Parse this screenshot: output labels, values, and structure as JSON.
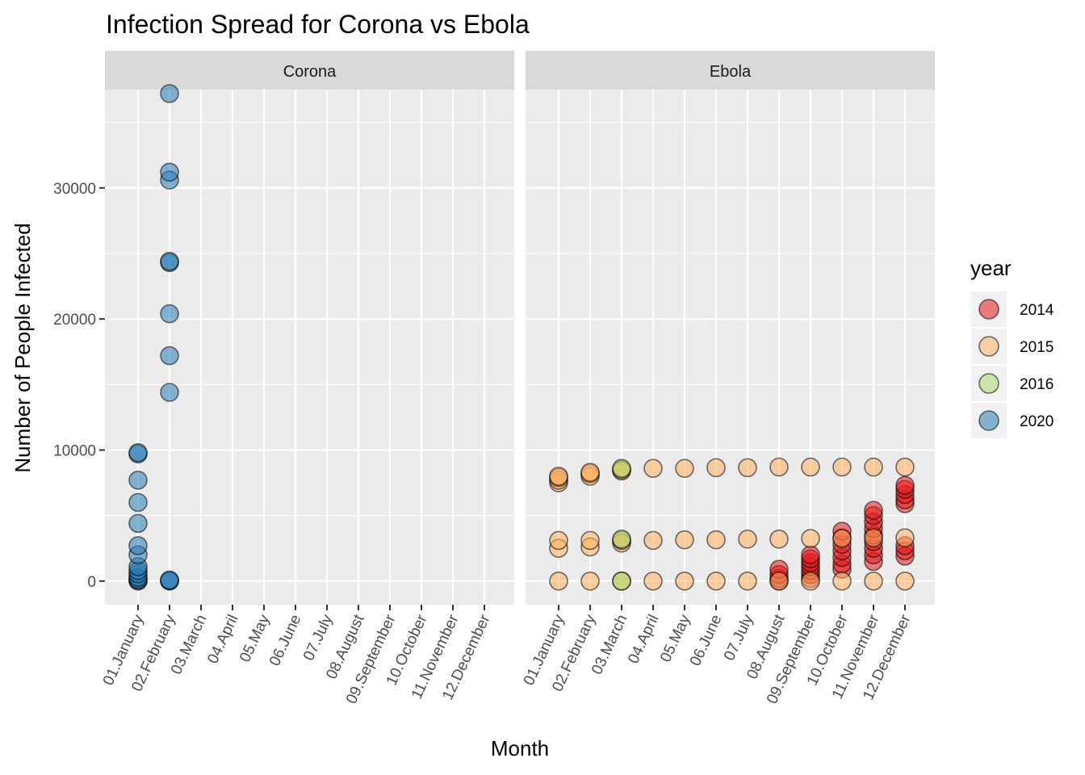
{
  "chart_data": {
    "type": "scatter",
    "title": "Infection Spread for Corona vs Ebola",
    "xlabel": "Month",
    "ylabel": "Number of People Infected",
    "ylim": [
      -1800,
      37500
    ],
    "y_ticks": [
      0,
      10000,
      20000,
      30000
    ],
    "y_tick_labels": [
      "0",
      "10000",
      "20000",
      "30000"
    ],
    "categories": [
      "01.January",
      "02.February",
      "03.March",
      "04.April",
      "05.May",
      "06.June",
      "07.July",
      "08.August",
      "09.September",
      "10.October",
      "11.November",
      "12.December"
    ],
    "grid": true,
    "point_alpha": 0.55,
    "panels": [
      {
        "name": "Corona",
        "series": [
          {
            "name": "2020",
            "points": [
              [
                "01.January",
                0
              ],
              [
                "01.January",
                50
              ],
              [
                "01.January",
                150
              ],
              [
                "01.January",
                300
              ],
              [
                "01.January",
                550
              ],
              [
                "01.January",
                800
              ],
              [
                "01.January",
                1100
              ],
              [
                "01.January",
                2000
              ],
              [
                "01.January",
                2700
              ],
              [
                "01.January",
                4400
              ],
              [
                "01.January",
                6000
              ],
              [
                "01.January",
                7700
              ],
              [
                "01.January",
                9700
              ],
              [
                "01.January",
                9800
              ],
              [
                "02.February",
                0
              ],
              [
                "02.February",
                30
              ],
              [
                "02.February",
                80
              ],
              [
                "02.February",
                14400
              ],
              [
                "02.February",
                17200
              ],
              [
                "02.February",
                20400
              ],
              [
                "02.February",
                24300
              ],
              [
                "02.February",
                24400
              ],
              [
                "02.February",
                30600
              ],
              [
                "02.February",
                31200
              ],
              [
                "02.February",
                37200
              ]
            ]
          }
        ]
      },
      {
        "name": "Ebola",
        "series": [
          {
            "name": "2014",
            "points": [
              [
                "08.August",
                0
              ],
              [
                "08.August",
                200
              ],
              [
                "08.August",
                500
              ],
              [
                "08.August",
                900
              ],
              [
                "09.September",
                200
              ],
              [
                "09.September",
                500
              ],
              [
                "09.September",
                800
              ],
              [
                "09.September",
                1100
              ],
              [
                "09.September",
                1400
              ],
              [
                "09.September",
                1700
              ],
              [
                "09.September",
                2000
              ],
              [
                "10.October",
                900
              ],
              [
                "10.October",
                1300
              ],
              [
                "10.October",
                1800
              ],
              [
                "10.October",
                2300
              ],
              [
                "10.October",
                2800
              ],
              [
                "10.October",
                3300
              ],
              [
                "10.October",
                3800
              ],
              [
                "11.November",
                1500
              ],
              [
                "11.November",
                2000
              ],
              [
                "11.November",
                2500
              ],
              [
                "11.November",
                3000
              ],
              [
                "11.November",
                3500
              ],
              [
                "11.November",
                4000
              ],
              [
                "11.November",
                4500
              ],
              [
                "11.November",
                5000
              ],
              [
                "11.November",
                5400
              ],
              [
                "12.December",
                1900
              ],
              [
                "12.December",
                2300
              ],
              [
                "12.December",
                2700
              ],
              [
                "12.December",
                5900
              ],
              [
                "12.December",
                6200
              ],
              [
                "12.December",
                6600
              ],
              [
                "12.December",
                7000
              ],
              [
                "12.December",
                7300
              ]
            ]
          },
          {
            "name": "2015",
            "points": [
              [
                "01.January",
                0
              ],
              [
                "01.January",
                2500
              ],
              [
                "01.January",
                3100
              ],
              [
                "01.January",
                7500
              ],
              [
                "01.January",
                7700
              ],
              [
                "01.January",
                7900
              ],
              [
                "01.January",
                8000
              ],
              [
                "02.February",
                0
              ],
              [
                "02.February",
                2600
              ],
              [
                "02.February",
                3100
              ],
              [
                "02.February",
                8000
              ],
              [
                "02.February",
                8200
              ],
              [
                "02.February",
                8300
              ],
              [
                "03.March",
                0
              ],
              [
                "03.March",
                2900
              ],
              [
                "03.March",
                3100
              ],
              [
                "03.March",
                8400
              ],
              [
                "03.March",
                8500
              ],
              [
                "04.April",
                0
              ],
              [
                "04.April",
                3100
              ],
              [
                "04.April",
                8600
              ],
              [
                "05.May",
                0
              ],
              [
                "05.May",
                3150
              ],
              [
                "05.May",
                8600
              ],
              [
                "06.June",
                0
              ],
              [
                "06.June",
                3150
              ],
              [
                "06.June",
                8650
              ],
              [
                "07.July",
                0
              ],
              [
                "07.July",
                3200
              ],
              [
                "07.July",
                8650
              ],
              [
                "08.August",
                0
              ],
              [
                "08.August",
                3200
              ],
              [
                "08.August",
                8700
              ],
              [
                "09.September",
                0
              ],
              [
                "09.September",
                3250
              ],
              [
                "09.September",
                8700
              ],
              [
                "10.October",
                0
              ],
              [
                "10.October",
                3250
              ],
              [
                "10.October",
                8700
              ],
              [
                "11.November",
                0
              ],
              [
                "11.November",
                3300
              ],
              [
                "11.November",
                8700
              ],
              [
                "12.December",
                0
              ],
              [
                "12.December",
                3300
              ],
              [
                "12.December",
                8700
              ]
            ]
          },
          {
            "name": "2016",
            "points": [
              [
                "03.March",
                0
              ],
              [
                "03.March",
                3200
              ],
              [
                "03.March",
                8600
              ]
            ]
          }
        ]
      }
    ],
    "legend": {
      "title": "year",
      "position": "right",
      "entries": [
        {
          "label": "2014",
          "color": "#e41a1c"
        },
        {
          "label": "2015",
          "color": "#fdae61"
        },
        {
          "label": "2016",
          "color": "#a6d96a"
        },
        {
          "label": "2020",
          "color": "#2c7bb6"
        }
      ]
    }
  }
}
